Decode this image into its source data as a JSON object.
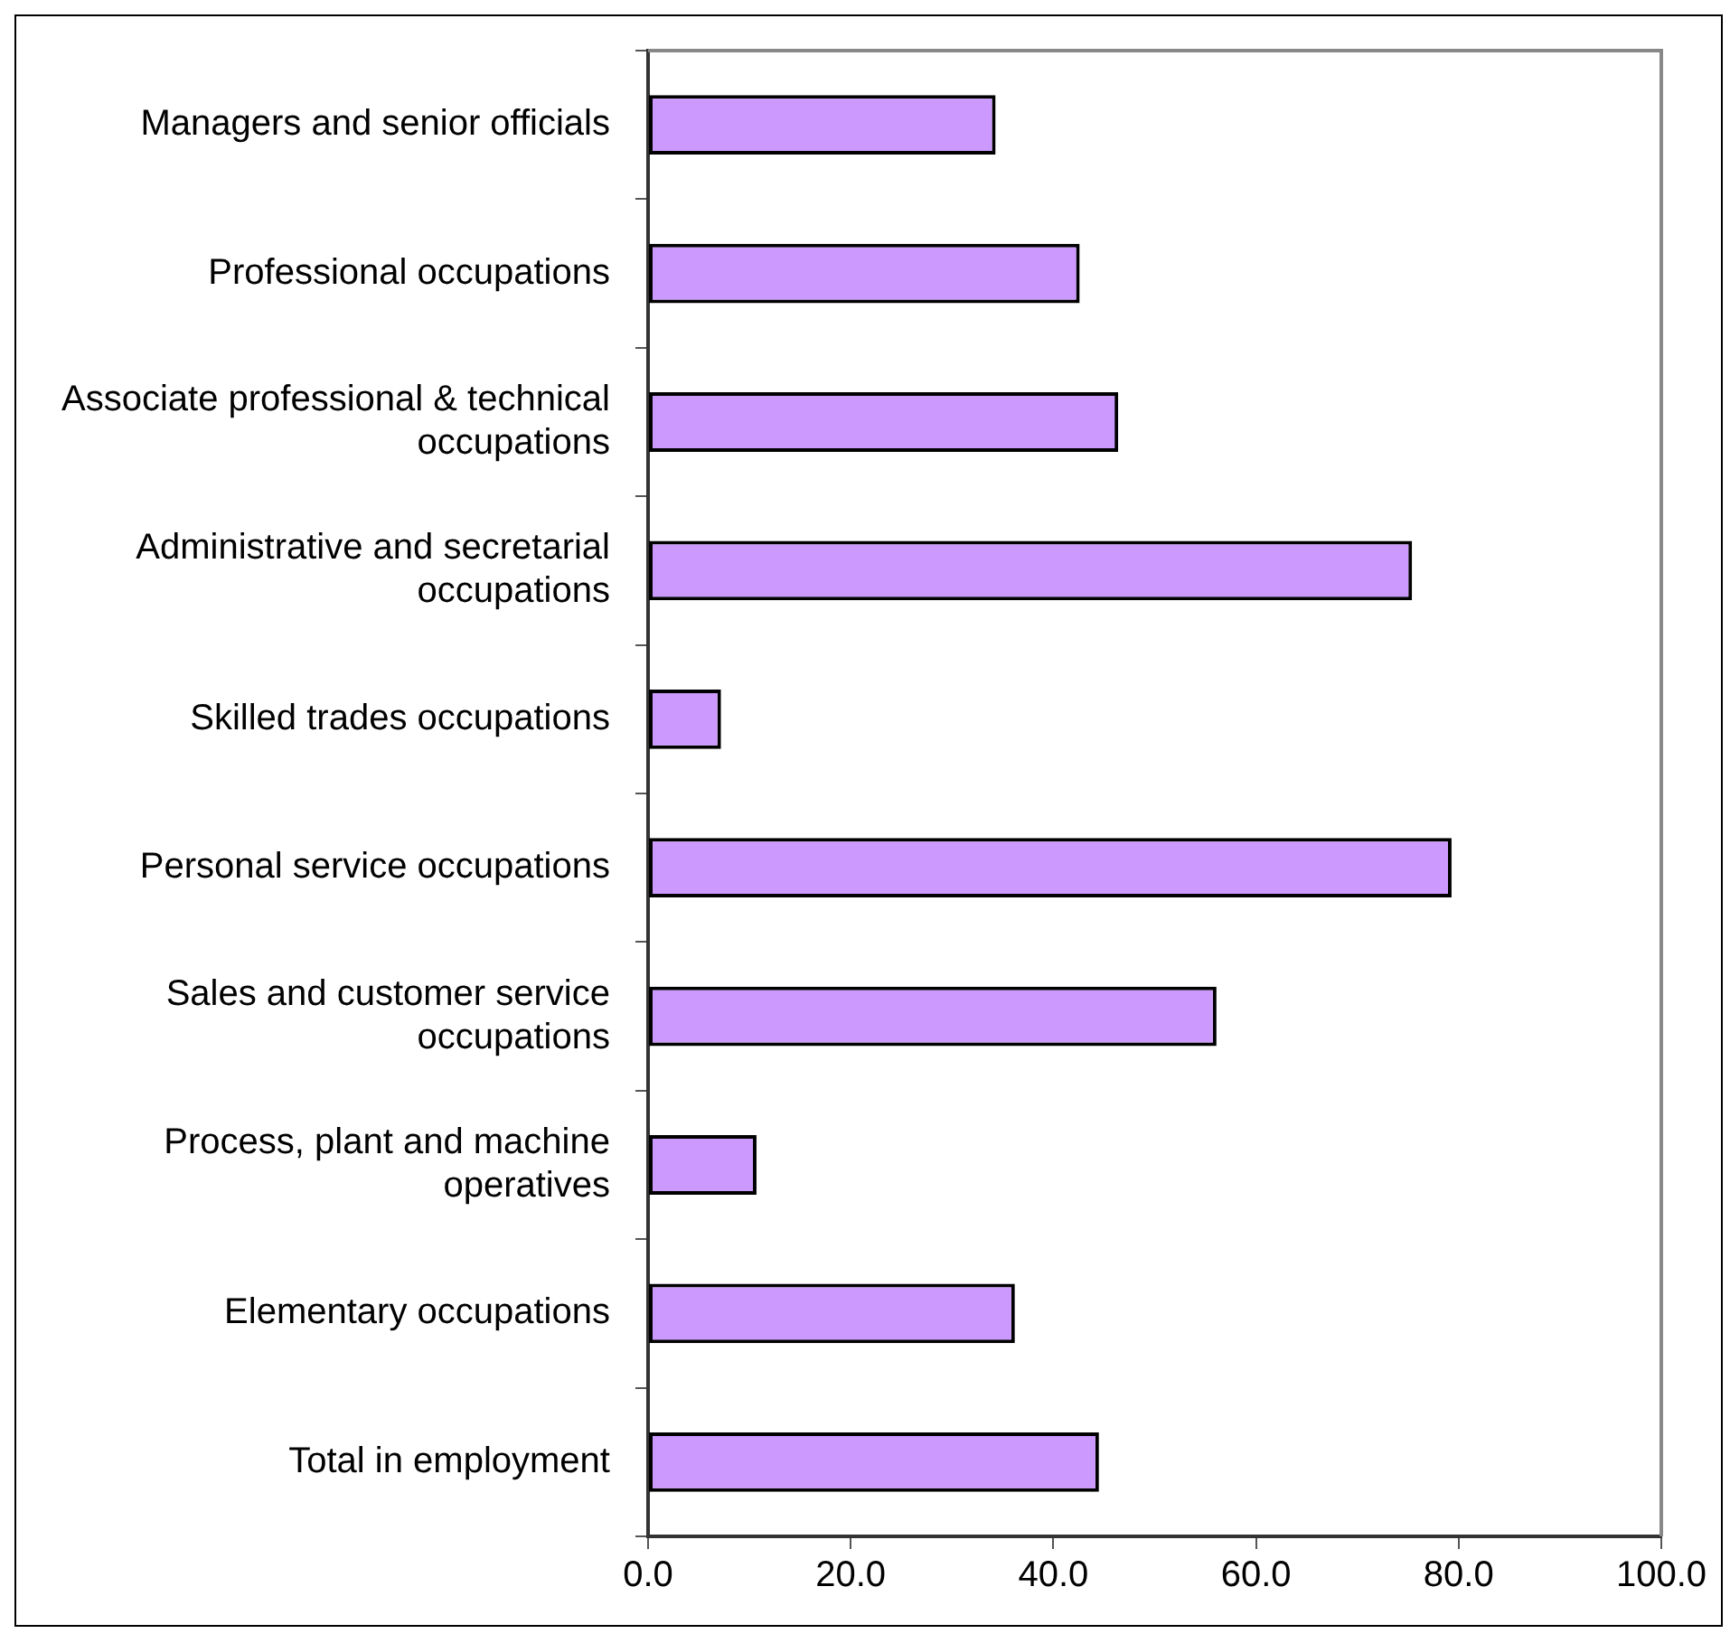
{
  "chart_data": {
    "type": "bar",
    "orientation": "horizontal",
    "categories": [
      "Managers and senior officials",
      "Professional occupations",
      "Associate professional & technical occupations",
      "Administrative and secretarial occupations",
      "Skilled trades occupations",
      "Personal service occupations",
      "Sales and customer service occupations",
      "Process, plant and machine operatives",
      "Elementary occupations",
      "Total in employment"
    ],
    "values": [
      34.3,
      42.6,
      46.4,
      75.4,
      7.2,
      79.3,
      56.1,
      10.7,
      36.2,
      44.5
    ],
    "color": "#cc99ff",
    "xlim": [
      0,
      100
    ],
    "xticks": [
      {
        "value": 0,
        "label": "0.0"
      },
      {
        "value": 20,
        "label": "20.0"
      },
      {
        "value": 40,
        "label": "40.0"
      },
      {
        "value": 60,
        "label": "60.0"
      },
      {
        "value": 80,
        "label": "80.0"
      },
      {
        "value": 100,
        "label": "100.0"
      }
    ],
    "grid": false,
    "legend": false
  }
}
